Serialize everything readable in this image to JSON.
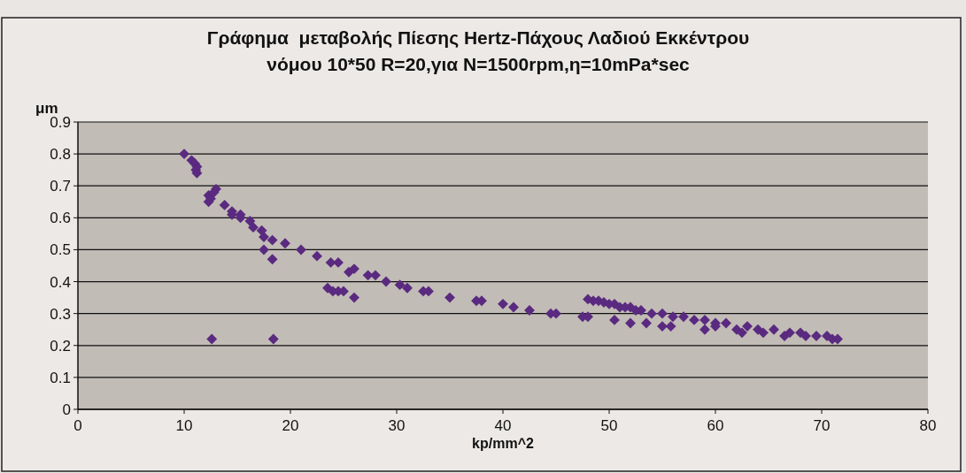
{
  "chart_data": {
    "type": "scatter",
    "title": "Γράφημα  μεταβολής Πίεσης Hertz-Πάχους Λαδιού Εκκέντρου\nνόμου 10*50 R=20,για N=1500rpm,η=10mPa*sec",
    "xlabel": "kp/mm^2",
    "ylabel": "μm",
    "xlim": [
      0,
      80
    ],
    "ylim": [
      0,
      0.9
    ],
    "xticks": [
      0,
      10,
      20,
      30,
      40,
      50,
      60,
      70,
      80
    ],
    "yticks": [
      0,
      0.1,
      0.2,
      0.3,
      0.4,
      0.5,
      0.6,
      0.7,
      0.8,
      0.9
    ],
    "grid": "y",
    "marker": "diamond",
    "series": [
      {
        "color": "#5a2a80",
        "x": [
          10.0,
          10.7,
          11.0,
          11.2,
          11.1,
          11.2,
          12.3,
          12.5,
          12.8,
          13.0,
          12.3,
          13.8,
          14.5,
          14.5,
          15.3,
          15.3,
          16.2,
          16.5,
          17.3,
          17.5,
          18.3,
          17.5,
          18.3,
          19.5,
          21.0,
          22.5,
          23.8,
          24.5,
          23.5,
          24.0,
          24.5,
          25.0,
          26.0,
          25.5,
          26.0,
          27.3,
          28.0,
          29.0,
          30.3,
          31.0,
          32.5,
          33.0,
          35.0,
          37.5,
          38.0,
          40.0,
          41.0,
          42.5,
          44.5,
          45.0,
          47.5,
          48.0,
          12.6,
          18.4,
          48.0,
          48.5,
          49.0,
          49.5,
          50.0,
          50.5,
          51.0,
          51.5,
          52.0,
          52.5,
          53.0,
          54.0,
          55.0,
          56.0,
          57.0,
          58.0,
          59.0,
          60.0,
          50.5,
          52.0,
          53.5,
          55.0,
          55.8,
          59.0,
          60.0,
          61.0,
          62.0,
          62.5,
          63.0,
          64.0,
          64.5,
          65.5,
          66.5,
          67.0,
          68.0,
          68.5,
          69.5,
          70.5,
          71.0,
          71.5
        ],
        "values": [
          0.8,
          0.78,
          0.77,
          0.76,
          0.75,
          0.74,
          0.67,
          0.66,
          0.68,
          0.69,
          0.65,
          0.64,
          0.61,
          0.62,
          0.6,
          0.61,
          0.59,
          0.57,
          0.56,
          0.54,
          0.53,
          0.5,
          0.47,
          0.52,
          0.5,
          0.48,
          0.46,
          0.46,
          0.38,
          0.37,
          0.37,
          0.37,
          0.35,
          0.43,
          0.44,
          0.42,
          0.42,
          0.4,
          0.39,
          0.38,
          0.37,
          0.37,
          0.35,
          0.34,
          0.34,
          0.33,
          0.32,
          0.31,
          0.3,
          0.3,
          0.29,
          0.29,
          0.22,
          0.22,
          0.345,
          0.34,
          0.34,
          0.335,
          0.33,
          0.33,
          0.32,
          0.32,
          0.32,
          0.31,
          0.31,
          0.3,
          0.3,
          0.29,
          0.29,
          0.28,
          0.28,
          0.27,
          0.28,
          0.27,
          0.27,
          0.26,
          0.26,
          0.25,
          0.26,
          0.27,
          0.25,
          0.24,
          0.26,
          0.25,
          0.24,
          0.25,
          0.23,
          0.24,
          0.24,
          0.23,
          0.23,
          0.23,
          0.22,
          0.22
        ]
      }
    ]
  }
}
